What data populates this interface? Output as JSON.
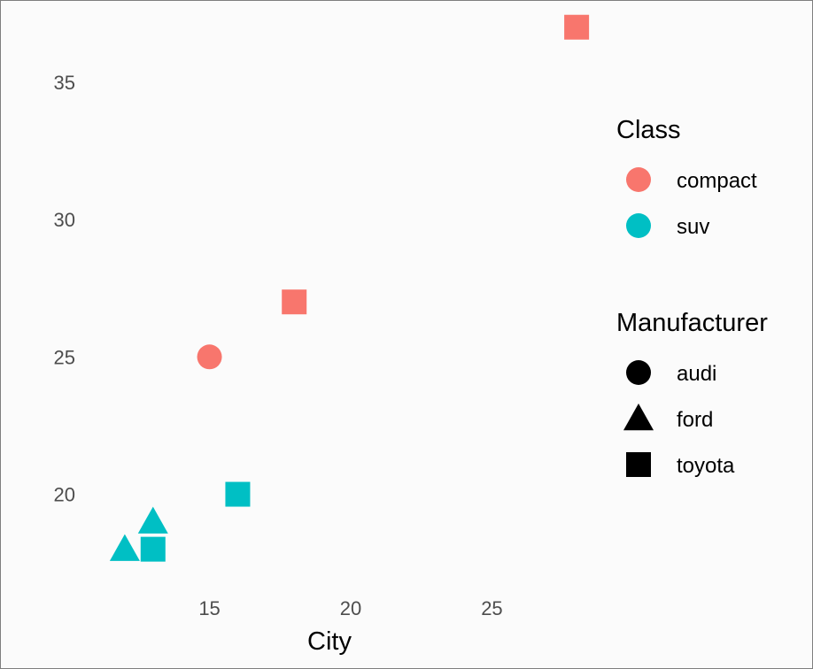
{
  "chart_data": {
    "type": "scatter",
    "title": "",
    "xlabel": "City",
    "ylabel": "",
    "xlim": [
      11,
      29
    ],
    "ylim": [
      16.7,
      37.7
    ],
    "x_ticks": [
      15,
      20,
      25
    ],
    "y_ticks": [
      20,
      25,
      30,
      35
    ],
    "grid": false,
    "legend_position": "right",
    "color_legend": {
      "title": "Class",
      "entries": [
        {
          "label": "compact",
          "color": "#F8766D"
        },
        {
          "label": "suv",
          "color": "#00BFC4"
        }
      ]
    },
    "shape_legend": {
      "title": "Manufacturer",
      "entries": [
        {
          "label": "audi",
          "shape": "circle"
        },
        {
          "label": "ford",
          "shape": "triangle"
        },
        {
          "label": "toyota",
          "shape": "square"
        }
      ]
    },
    "points": [
      {
        "x": 15,
        "y": 25,
        "class": "compact",
        "manufacturer": "audi"
      },
      {
        "x": 18,
        "y": 27,
        "class": "compact",
        "manufacturer": "toyota"
      },
      {
        "x": 28,
        "y": 37,
        "class": "compact",
        "manufacturer": "toyota"
      },
      {
        "x": 16,
        "y": 20,
        "class": "suv",
        "manufacturer": "toyota"
      },
      {
        "x": 13,
        "y": 18,
        "class": "suv",
        "manufacturer": "toyota"
      },
      {
        "x": 13,
        "y": 19,
        "class": "suv",
        "manufacturer": "ford"
      },
      {
        "x": 12,
        "y": 18,
        "class": "suv",
        "manufacturer": "ford"
      }
    ]
  }
}
